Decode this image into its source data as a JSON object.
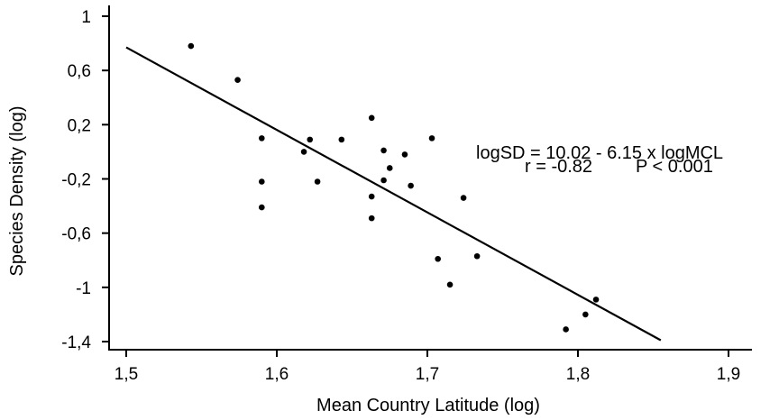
{
  "chart_data": {
    "type": "scatter",
    "title": "",
    "xlabel": "Mean Country Latitude (log)",
    "ylabel": "Species Density (log)",
    "xlim": [
      1.5,
      1.9
    ],
    "ylim": [
      -1.4,
      1.0
    ],
    "x_ticks": [
      1.5,
      1.6,
      1.7,
      1.8,
      1.9
    ],
    "x_tick_labels": [
      "1,5",
      "1,6",
      "1,7",
      "1,8",
      "1,9"
    ],
    "y_ticks": [
      1.0,
      0.6,
      0.2,
      -0.2,
      -0.6,
      -1.0,
      -1.4
    ],
    "y_tick_labels": [
      "1",
      "0,6",
      "0,2",
      "-0,2",
      "-0,6",
      "-1",
      "-1,4"
    ],
    "grid": false,
    "points": [
      {
        "x": 1.543,
        "y": 0.78
      },
      {
        "x": 1.574,
        "y": 0.53
      },
      {
        "x": 1.59,
        "y": 0.1
      },
      {
        "x": 1.59,
        "y": -0.22
      },
      {
        "x": 1.59,
        "y": -0.41
      },
      {
        "x": 1.618,
        "y": 0.0
      },
      {
        "x": 1.622,
        "y": 0.09
      },
      {
        "x": 1.627,
        "y": -0.22
      },
      {
        "x": 1.643,
        "y": 0.09
      },
      {
        "x": 1.663,
        "y": 0.25
      },
      {
        "x": 1.663,
        "y": -0.33
      },
      {
        "x": 1.663,
        "y": -0.49
      },
      {
        "x": 1.671,
        "y": 0.01
      },
      {
        "x": 1.671,
        "y": -0.21
      },
      {
        "x": 1.675,
        "y": -0.12
      },
      {
        "x": 1.685,
        "y": -0.02
      },
      {
        "x": 1.689,
        "y": -0.25
      },
      {
        "x": 1.703,
        "y": 0.1
      },
      {
        "x": 1.707,
        "y": -0.79
      },
      {
        "x": 1.715,
        "y": -0.98
      },
      {
        "x": 1.724,
        "y": -0.34
      },
      {
        "x": 1.733,
        "y": -0.77
      },
      {
        "x": 1.792,
        "y": -1.31
      },
      {
        "x": 1.805,
        "y": -1.2
      },
      {
        "x": 1.812,
        "y": -1.09
      }
    ],
    "fit_line": {
      "x": [
        1.5,
        1.855
      ],
      "y": [
        0.77,
        -1.39
      ]
    },
    "annotations": [
      "logSD = 10.02 - 6.15 x logMCL",
      "r = -0.82",
      "P < 0.001"
    ]
  }
}
